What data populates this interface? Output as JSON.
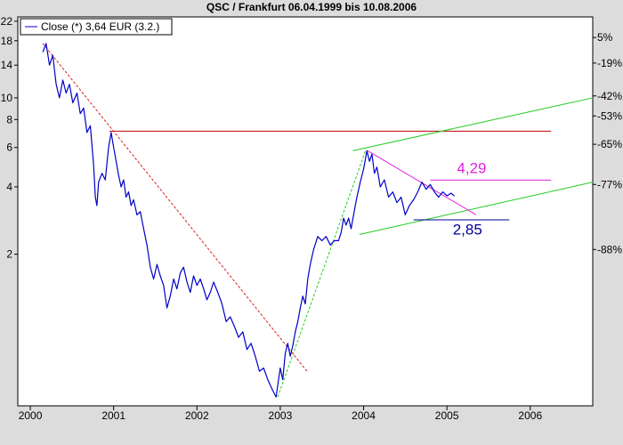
{
  "colors": {
    "background": "#dcdcdc",
    "plot_background": "#ffffff",
    "price_line": "#0000c8",
    "resistance": "#c00000",
    "downtrend": "#dd2020",
    "uptrend_steep": "#22cc22",
    "channel": "#22cc22",
    "wedge": "#e020e0",
    "support": "#000099"
  },
  "chart_data": {
    "type": "line",
    "title": "QSC / Frankfurt 06.04.1999 bis 10.08.2006",
    "legend": {
      "label": "Close (*) 3,64 EUR (3.2.)",
      "placement": "top-left"
    },
    "y_scale": "log",
    "ylim": [
      0.42,
      23
    ],
    "left_ticks": [
      {
        "label": "22",
        "value": 22
      },
      {
        "label": "18",
        "value": 18
      },
      {
        "label": "14",
        "value": 14
      },
      {
        "label": "10",
        "value": 10
      },
      {
        "label": "8",
        "value": 8
      },
      {
        "label": "6",
        "value": 6
      },
      {
        "label": "4",
        "value": 4
      },
      {
        "label": "2",
        "value": 2
      }
    ],
    "right_ticks": [
      {
        "label": "5%",
        "value": 18.6
      },
      {
        "label": "-19%",
        "value": 14.3
      },
      {
        "label": "-42%",
        "value": 10.2
      },
      {
        "label": "-53%",
        "value": 8.3
      },
      {
        "label": "-65%",
        "value": 6.2
      },
      {
        "label": "-77%",
        "value": 4.1
      },
      {
        "label": "-88%",
        "value": 2.1
      }
    ],
    "xlim": [
      1999.85,
      2006.75
    ],
    "x_ticks": [
      {
        "label": "2000",
        "value": 2000.0
      },
      {
        "label": "2001",
        "value": 2001.0
      },
      {
        "label": "2002",
        "value": 2002.0
      },
      {
        "label": "2003",
        "value": 2003.0
      },
      {
        "label": "2004",
        "value": 2004.0
      },
      {
        "label": "2005",
        "value": 2005.0
      },
      {
        "label": "2006",
        "value": 2006.0
      }
    ],
    "series": [
      {
        "name": "Close (*) 3,64 EUR (3.2.)",
        "points": [
          [
            2000.15,
            16.0
          ],
          [
            2000.19,
            17.5
          ],
          [
            2000.23,
            14.0
          ],
          [
            2000.27,
            15.5
          ],
          [
            2000.31,
            11.5
          ],
          [
            2000.35,
            10.0
          ],
          [
            2000.39,
            12.0
          ],
          [
            2000.43,
            10.5
          ],
          [
            2000.47,
            11.5
          ],
          [
            2000.51,
            9.5
          ],
          [
            2000.56,
            10.5
          ],
          [
            2000.6,
            8.5
          ],
          [
            2000.64,
            9.0
          ],
          [
            2000.68,
            7.0
          ],
          [
            2000.72,
            7.5
          ],
          [
            2000.76,
            5.0
          ],
          [
            2000.78,
            3.6
          ],
          [
            2000.8,
            3.3
          ],
          [
            2000.82,
            4.2
          ],
          [
            2000.86,
            4.6
          ],
          [
            2000.9,
            4.3
          ],
          [
            2000.94,
            6.0
          ],
          [
            2000.97,
            7.0
          ],
          [
            2001.0,
            6.0
          ],
          [
            2001.03,
            5.2
          ],
          [
            2001.06,
            4.5
          ],
          [
            2001.09,
            4.0
          ],
          [
            2001.12,
            4.3
          ],
          [
            2001.15,
            3.6
          ],
          [
            2001.18,
            3.8
          ],
          [
            2001.21,
            3.3
          ],
          [
            2001.24,
            3.5
          ],
          [
            2001.28,
            3.0
          ],
          [
            2001.32,
            3.1
          ],
          [
            2001.36,
            2.6
          ],
          [
            2001.4,
            2.2
          ],
          [
            2001.44,
            1.75
          ],
          [
            2001.48,
            1.55
          ],
          [
            2001.52,
            1.8
          ],
          [
            2001.56,
            1.6
          ],
          [
            2001.6,
            1.45
          ],
          [
            2001.64,
            1.15
          ],
          [
            2001.68,
            1.3
          ],
          [
            2001.72,
            1.55
          ],
          [
            2001.76,
            1.4
          ],
          [
            2001.8,
            1.65
          ],
          [
            2001.84,
            1.75
          ],
          [
            2001.88,
            1.5
          ],
          [
            2001.92,
            1.35
          ],
          [
            2001.96,
            1.6
          ],
          [
            2002.0,
            1.45
          ],
          [
            2002.04,
            1.55
          ],
          [
            2002.08,
            1.4
          ],
          [
            2002.12,
            1.25
          ],
          [
            2002.16,
            1.35
          ],
          [
            2002.2,
            1.5
          ],
          [
            2002.25,
            1.35
          ],
          [
            2002.3,
            1.2
          ],
          [
            2002.35,
            1.0
          ],
          [
            2002.4,
            1.05
          ],
          [
            2002.45,
            0.95
          ],
          [
            2002.5,
            0.85
          ],
          [
            2002.55,
            0.9
          ],
          [
            2002.6,
            0.75
          ],
          [
            2002.65,
            0.8
          ],
          [
            2002.7,
            0.7
          ],
          [
            2002.75,
            0.6
          ],
          [
            2002.8,
            0.62
          ],
          [
            2002.85,
            0.55
          ],
          [
            2002.9,
            0.5
          ],
          [
            2002.95,
            0.46
          ],
          [
            2002.97,
            0.52
          ],
          [
            2003.0,
            0.62
          ],
          [
            2003.03,
            0.55
          ],
          [
            2003.06,
            0.72
          ],
          [
            2003.09,
            0.8
          ],
          [
            2003.12,
            0.7
          ],
          [
            2003.15,
            0.78
          ],
          [
            2003.18,
            0.9
          ],
          [
            2003.21,
            1.0
          ],
          [
            2003.24,
            1.15
          ],
          [
            2003.27,
            1.3
          ],
          [
            2003.3,
            1.2
          ],
          [
            2003.33,
            1.55
          ],
          [
            2003.36,
            1.8
          ],
          [
            2003.4,
            2.1
          ],
          [
            2003.45,
            2.4
          ],
          [
            2003.5,
            2.3
          ],
          [
            2003.55,
            2.4
          ],
          [
            2003.6,
            2.2
          ],
          [
            2003.65,
            2.3
          ],
          [
            2003.7,
            2.3
          ],
          [
            2003.73,
            2.5
          ],
          [
            2003.76,
            2.9
          ],
          [
            2003.79,
            2.7
          ],
          [
            2003.82,
            2.9
          ],
          [
            2003.85,
            2.6
          ],
          [
            2003.88,
            3.0
          ],
          [
            2003.92,
            3.6
          ],
          [
            2003.96,
            4.2
          ],
          [
            2004.0,
            4.8
          ],
          [
            2004.04,
            5.8
          ],
          [
            2004.07,
            5.2
          ],
          [
            2004.1,
            5.6
          ],
          [
            2004.13,
            4.6
          ],
          [
            2004.16,
            4.9
          ],
          [
            2004.2,
            4.0
          ],
          [
            2004.25,
            4.3
          ],
          [
            2004.3,
            3.6
          ],
          [
            2004.35,
            3.8
          ],
          [
            2004.4,
            3.4
          ],
          [
            2004.45,
            3.6
          ],
          [
            2004.5,
            3.0
          ],
          [
            2004.55,
            3.3
          ],
          [
            2004.6,
            3.5
          ],
          [
            2004.65,
            3.8
          ],
          [
            2004.7,
            4.2
          ],
          [
            2004.75,
            3.9
          ],
          [
            2004.8,
            4.1
          ],
          [
            2004.85,
            3.8
          ],
          [
            2004.9,
            3.6
          ],
          [
            2004.95,
            3.8
          ],
          [
            2005.0,
            3.65
          ],
          [
            2005.05,
            3.75
          ],
          [
            2005.09,
            3.64
          ]
        ]
      }
    ],
    "trendlines": [
      {
        "name": "resistance",
        "from": [
          2000.95,
          7.1
        ],
        "to": [
          2006.25,
          7.1
        ],
        "style": "solid",
        "color_key": "resistance"
      },
      {
        "name": "downtrend",
        "from": [
          2000.15,
          17.5
        ],
        "to": [
          2003.32,
          0.6
        ],
        "style": "dashed",
        "color_key": "downtrend"
      },
      {
        "name": "uptrend-steep",
        "from": [
          2002.97,
          0.46
        ],
        "to": [
          2004.03,
          5.9
        ],
        "style": "dashed",
        "color_key": "uptrend_steep"
      },
      {
        "name": "channel-upper",
        "from": [
          2003.87,
          5.8
        ],
        "to": [
          2006.75,
          10.0
        ],
        "style": "solid",
        "color_key": "channel"
      },
      {
        "name": "channel-lower",
        "from": [
          2003.95,
          2.45
        ],
        "to": [
          2006.75,
          4.2
        ],
        "style": "solid",
        "color_key": "channel"
      },
      {
        "name": "wedge-falling",
        "from": [
          2004.05,
          5.8
        ],
        "to": [
          2005.35,
          3.0
        ],
        "style": "solid",
        "color_key": "wedge"
      },
      {
        "name": "wedge-level",
        "from": [
          2004.8,
          4.29
        ],
        "to": [
          2006.25,
          4.29
        ],
        "style": "solid",
        "color_key": "wedge"
      },
      {
        "name": "support-level",
        "from": [
          2004.6,
          2.85
        ],
        "to": [
          2005.75,
          2.85
        ],
        "style": "solid",
        "color_key": "support"
      }
    ],
    "annotations": [
      {
        "name": "annotation-4-29",
        "text": "4,29",
        "x": 2005.12,
        "y": 4.6,
        "color_key": "wedge"
      },
      {
        "name": "annotation-2-85",
        "text": "2,85",
        "x": 2005.07,
        "y": 2.45,
        "color_key": "support"
      }
    ],
    "grid": false
  }
}
